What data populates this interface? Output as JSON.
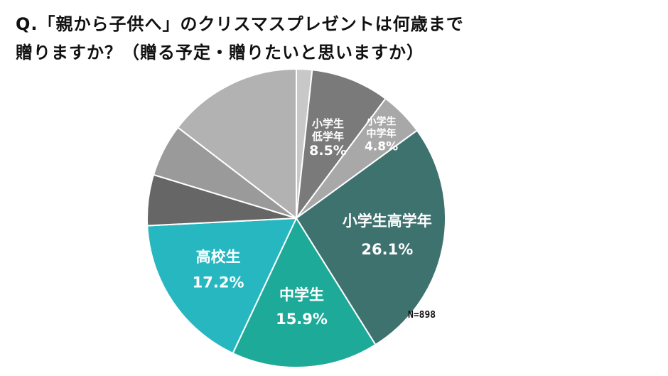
{
  "title": {
    "line1": "Q.「親から子供へ」のクリスマスプレゼントは何歳まで",
    "line2": "贈りますか？（贈る予定・贈りたいと思いますか）"
  },
  "sample_size": "N=898",
  "chart_data": {
    "type": "pie",
    "start_angle_deg": 0,
    "direction": "clockwise",
    "slices": [
      {
        "label": "",
        "value": 1.7,
        "color": "#c8c8c8"
      },
      {
        "label": "小学生低学年",
        "label_lines": [
          "小学生",
          "低学年"
        ],
        "value": 8.5,
        "value_label": "8.5%",
        "color": "#7a7a7a"
      },
      {
        "label": "小学生中学年",
        "label_lines": [
          "小学生",
          "中学年"
        ],
        "value": 4.8,
        "value_label": "4.8%",
        "color": "#a8a8a8"
      },
      {
        "label": "小学生高学年",
        "label_lines": [
          "小学生高学年"
        ],
        "value": 26.1,
        "value_label": "26.1%",
        "color": "#3e726f"
      },
      {
        "label": "中学生",
        "label_lines": [
          "中学生"
        ],
        "value": 15.9,
        "value_label": "15.9%",
        "color": "#1daa98"
      },
      {
        "label": "高校生",
        "label_lines": [
          "高校生"
        ],
        "value": 17.2,
        "value_label": "17.2%",
        "color": "#27b7c1"
      },
      {
        "label": "",
        "value": 5.5,
        "color": "#666666"
      },
      {
        "label": "",
        "value": 5.7,
        "color": "#9a9a9a"
      },
      {
        "label": "",
        "value": 14.6,
        "color": "#b2b2b2"
      }
    ]
  }
}
